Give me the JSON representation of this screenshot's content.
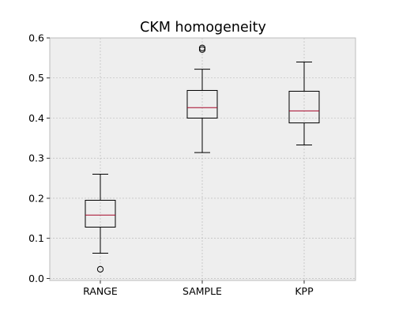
{
  "chart_data": {
    "type": "box",
    "title": "CKM homogeneity",
    "xlabel": "",
    "ylabel": "",
    "ylim": [
      -0.005,
      0.6
    ],
    "grid": true,
    "y_ticks": [
      0.0,
      0.1,
      0.2,
      0.3,
      0.4,
      0.5,
      0.6
    ],
    "y_tick_labels": [
      "0.0",
      "0.1",
      "0.2",
      "0.3",
      "0.4",
      "0.5",
      "0.6"
    ],
    "categories": [
      "RANGE",
      "SAMPLE",
      "KPP"
    ],
    "boxes": [
      {
        "category": "RANGE",
        "whisker_low": 0.063,
        "q1": 0.128,
        "median": 0.158,
        "q3": 0.195,
        "whisker_high": 0.26,
        "outliers": [
          0.023
        ]
      },
      {
        "category": "SAMPLE",
        "whisker_low": 0.314,
        "q1": 0.4,
        "median": 0.426,
        "q3": 0.469,
        "whisker_high": 0.522,
        "outliers": [
          0.571,
          0.575
        ]
      },
      {
        "category": "KPP",
        "whisker_low": 0.333,
        "q1": 0.388,
        "median": 0.418,
        "q3": 0.467,
        "whisker_high": 0.54,
        "outliers": []
      }
    ],
    "colors": {
      "background": "#eeeeee",
      "grid": "#b2b2b2",
      "box": "#000000",
      "median": "#a60628",
      "axes_edge": "#bcbcbc"
    }
  }
}
